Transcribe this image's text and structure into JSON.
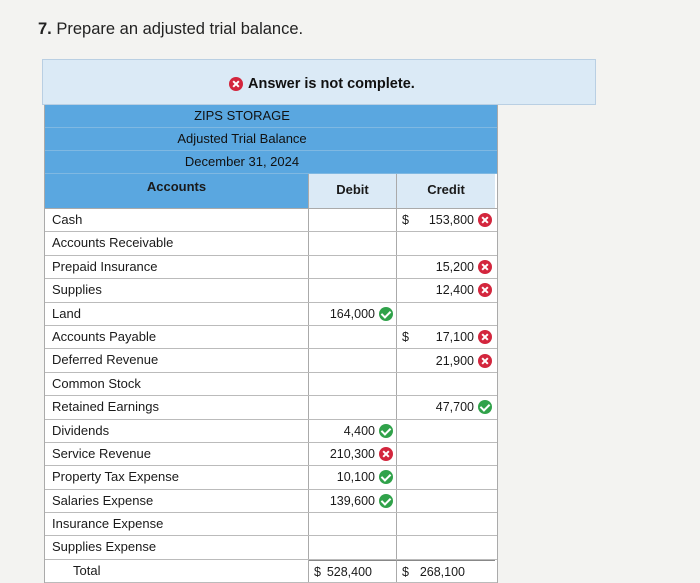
{
  "question": {
    "number": "7.",
    "text": "Prepare an adjusted trial balance."
  },
  "status": {
    "text": "Answer is not complete."
  },
  "table": {
    "company": "ZIPS STORAGE",
    "statement": "Adjusted Trial Balance",
    "date": "December 31, 2024",
    "columns": [
      "Accounts",
      "Debit",
      "Credit"
    ],
    "rows": [
      {
        "account": "Cash",
        "debit": "",
        "debit_mark": "",
        "debit_dollar": false,
        "credit": "153,800",
        "credit_mark": "x",
        "credit_dollar": true
      },
      {
        "account": "Accounts Receivable",
        "debit": "",
        "debit_mark": "",
        "debit_dollar": false,
        "credit": "",
        "credit_mark": "",
        "credit_dollar": false
      },
      {
        "account": "Prepaid Insurance",
        "debit": "",
        "debit_mark": "",
        "debit_dollar": false,
        "credit": "15,200",
        "credit_mark": "x",
        "credit_dollar": false
      },
      {
        "account": "Supplies",
        "debit": "",
        "debit_mark": "",
        "debit_dollar": false,
        "credit": "12,400",
        "credit_mark": "x",
        "credit_dollar": false
      },
      {
        "account": "Land",
        "debit": "164,000",
        "debit_mark": "check",
        "debit_dollar": false,
        "credit": "",
        "credit_mark": "",
        "credit_dollar": false
      },
      {
        "account": "Accounts Payable",
        "debit": "",
        "debit_mark": "",
        "debit_dollar": false,
        "credit": "17,100",
        "credit_mark": "x",
        "credit_dollar": true
      },
      {
        "account": "Deferred Revenue",
        "debit": "",
        "debit_mark": "",
        "debit_dollar": false,
        "credit": "21,900",
        "credit_mark": "x",
        "credit_dollar": false
      },
      {
        "account": "Common Stock",
        "debit": "",
        "debit_mark": "",
        "debit_dollar": false,
        "credit": "",
        "credit_mark": "",
        "credit_dollar": false
      },
      {
        "account": "Retained Earnings",
        "debit": "",
        "debit_mark": "",
        "debit_dollar": false,
        "credit": "47,700",
        "credit_mark": "check",
        "credit_dollar": false
      },
      {
        "account": "Dividends",
        "debit": "4,400",
        "debit_mark": "check",
        "debit_dollar": false,
        "credit": "",
        "credit_mark": "",
        "credit_dollar": false
      },
      {
        "account": "Service Revenue",
        "debit": "210,300",
        "debit_mark": "x",
        "debit_dollar": false,
        "credit": "",
        "credit_mark": "",
        "credit_dollar": false
      },
      {
        "account": "Property Tax Expense",
        "debit": "10,100",
        "debit_mark": "check",
        "debit_dollar": false,
        "credit": "",
        "credit_mark": "",
        "credit_dollar": false
      },
      {
        "account": "Salaries Expense",
        "debit": "139,600",
        "debit_mark": "check",
        "debit_dollar": false,
        "credit": "",
        "credit_mark": "",
        "credit_dollar": false
      },
      {
        "account": "Insurance Expense",
        "debit": "",
        "debit_mark": "",
        "debit_dollar": false,
        "credit": "",
        "credit_mark": "",
        "credit_dollar": false
      },
      {
        "account": "Supplies Expense",
        "debit": "",
        "debit_mark": "",
        "debit_dollar": false,
        "credit": "",
        "credit_mark": "",
        "credit_dollar": false
      }
    ],
    "total": {
      "label": "Total",
      "dollar": "$",
      "debit": "528,400",
      "credit": "268,100"
    },
    "currency_symbol": "$"
  }
}
